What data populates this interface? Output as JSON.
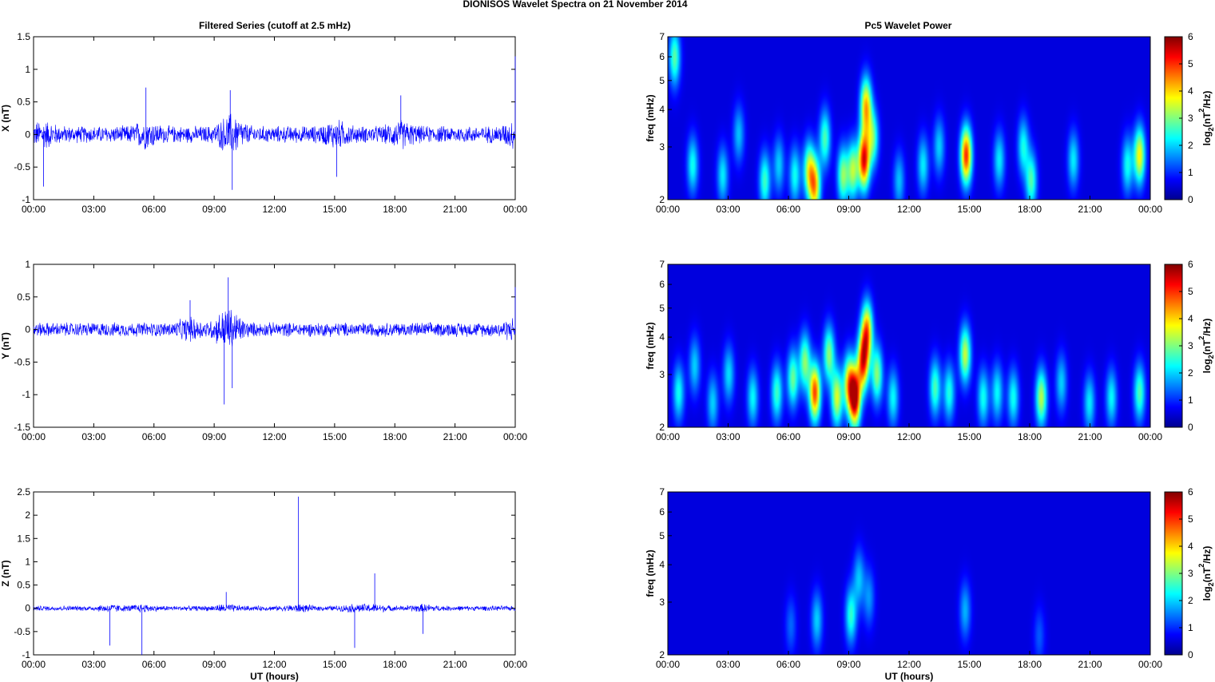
{
  "figure": {
    "title": "DIONISOS Wavelet Spectra on 21 November  2014",
    "left_title": "Filtered Series (cutoff at 2.5 mHz)",
    "right_title": "Pc5 Wavelet Power",
    "xlabel": "UT (hours)"
  },
  "colorbar": {
    "label_prefix": "log",
    "label_sub": "2",
    "label_mid": "(nT",
    "label_sup": "2",
    "label_suffix": "/Hz)",
    "ticks": [
      "0",
      "1",
      "2",
      "3",
      "4",
      "5",
      "6"
    ],
    "range": [
      0,
      6
    ],
    "colormap": "jet"
  },
  "chart_data": [
    {
      "type": "line",
      "panel": "time-series",
      "ylabel": "X (nT)",
      "x_ticks": [
        "00:00",
        "03:00",
        "06:00",
        "09:00",
        "12:00",
        "15:00",
        "18:00",
        "21:00",
        "00:00"
      ],
      "x_range": [
        "00:00",
        "24:00"
      ],
      "y_ticks": [
        "-1",
        "-0.5",
        "0",
        "0.5",
        "1",
        "1.5"
      ],
      "ylim": [
        -1,
        1.5
      ],
      "color": "#0000ff",
      "noise_amplitude": 0.12,
      "bursts": [
        {
          "time_h": 5.6,
          "value": 0.72
        },
        {
          "time_h": 9.8,
          "value": 0.68
        },
        {
          "time_h": 9.9,
          "value": -0.85
        },
        {
          "time_h": 0.5,
          "value": -0.8
        },
        {
          "time_h": 15.1,
          "value": -0.65
        },
        {
          "time_h": 18.3,
          "value": 0.6
        },
        {
          "time_h": 24.0,
          "value": 1.2
        }
      ]
    },
    {
      "type": "line",
      "panel": "time-series",
      "ylabel": "Y (nT)",
      "x_ticks": [
        "00:00",
        "03:00",
        "06:00",
        "09:00",
        "12:00",
        "15:00",
        "18:00",
        "21:00",
        "00:00"
      ],
      "x_range": [
        "00:00",
        "24:00"
      ],
      "y_ticks": [
        "-1.5",
        "-1",
        "-0.5",
        "0",
        "0.5",
        "1"
      ],
      "ylim": [
        -1.5,
        1
      ],
      "color": "#0000ff",
      "noise_amplitude": 0.1,
      "bursts": [
        {
          "time_h": 9.7,
          "value": 0.8
        },
        {
          "time_h": 9.5,
          "value": -1.15
        },
        {
          "time_h": 9.9,
          "value": -0.9
        },
        {
          "time_h": 7.8,
          "value": 0.45
        },
        {
          "time_h": 24.0,
          "value": 0.65
        }
      ]
    },
    {
      "type": "line",
      "panel": "time-series",
      "ylabel": "Z (nT)",
      "x_ticks": [
        "00:00",
        "03:00",
        "06:00",
        "09:00",
        "12:00",
        "15:00",
        "18:00",
        "21:00",
        "00:00"
      ],
      "x_range": [
        "00:00",
        "24:00"
      ],
      "y_ticks": [
        "-1",
        "-0.5",
        "0",
        "0.5",
        "1",
        "1.5",
        "2",
        "2.5"
      ],
      "ylim": [
        -1,
        2.5
      ],
      "color": "#0000ff",
      "noise_amplitude": 0.05,
      "bursts": [
        {
          "time_h": 13.2,
          "value": 2.4
        },
        {
          "time_h": 17.0,
          "value": 0.75
        },
        {
          "time_h": 3.8,
          "value": -0.8
        },
        {
          "time_h": 5.4,
          "value": -1.0
        },
        {
          "time_h": 16.0,
          "value": -0.85
        },
        {
          "time_h": 19.4,
          "value": -0.55
        },
        {
          "time_h": 9.6,
          "value": 0.35
        }
      ]
    },
    {
      "type": "heatmap",
      "panel": "wavelet-power",
      "ylabel": "freq (mHz)",
      "x_ticks": [
        "00:00",
        "03:00",
        "06:00",
        "09:00",
        "12:00",
        "15:00",
        "18:00",
        "21:00",
        "00:00"
      ],
      "x_range": [
        "00:00",
        "24:00"
      ],
      "y_ticks": [
        "2",
        "3",
        "4",
        "5",
        "6",
        "7"
      ],
      "ylim": [
        2,
        7
      ],
      "yscale": "log",
      "zlim": [
        0,
        6
      ],
      "blobs": [
        {
          "time_h": 0.3,
          "freq": 6.0,
          "power": 2.5
        },
        {
          "time_h": 1.2,
          "freq": 2.6,
          "power": 2.0
        },
        {
          "time_h": 2.7,
          "freq": 2.4,
          "power": 1.8
        },
        {
          "time_h": 3.5,
          "freq": 3.3,
          "power": 1.5
        },
        {
          "time_h": 4.8,
          "freq": 2.3,
          "power": 2.3
        },
        {
          "time_h": 5.5,
          "freq": 2.6,
          "power": 1.6
        },
        {
          "time_h": 6.3,
          "freq": 2.4,
          "power": 2.0
        },
        {
          "time_h": 7.0,
          "freq": 2.5,
          "power": 3.0
        },
        {
          "time_h": 7.3,
          "freq": 2.2,
          "power": 3.8
        },
        {
          "time_h": 7.8,
          "freq": 3.2,
          "power": 2.4
        },
        {
          "time_h": 8.7,
          "freq": 2.4,
          "power": 2.8
        },
        {
          "time_h": 9.2,
          "freq": 2.5,
          "power": 3.0
        },
        {
          "time_h": 9.75,
          "freq": 2.7,
          "power": 5.3
        },
        {
          "time_h": 9.85,
          "freq": 4.1,
          "power": 4.0
        },
        {
          "time_h": 10.2,
          "freq": 3.2,
          "power": 2.5
        },
        {
          "time_h": 11.5,
          "freq": 2.3,
          "power": 1.5
        },
        {
          "time_h": 12.7,
          "freq": 2.6,
          "power": 1.8
        },
        {
          "time_h": 13.5,
          "freq": 3.0,
          "power": 1.6
        },
        {
          "time_h": 14.85,
          "freq": 2.8,
          "power": 5.0
        },
        {
          "time_h": 16.5,
          "freq": 2.7,
          "power": 1.8
        },
        {
          "time_h": 17.7,
          "freq": 3.0,
          "power": 2.0
        },
        {
          "time_h": 18.1,
          "freq": 2.3,
          "power": 2.4
        },
        {
          "time_h": 20.2,
          "freq": 2.7,
          "power": 1.8
        },
        {
          "time_h": 22.9,
          "freq": 2.6,
          "power": 2.0
        },
        {
          "time_h": 23.5,
          "freq": 2.8,
          "power": 3.6
        }
      ]
    },
    {
      "type": "heatmap",
      "panel": "wavelet-power",
      "ylabel": "freq (mHz)",
      "x_ticks": [
        "00:00",
        "03:00",
        "06:00",
        "09:00",
        "12:00",
        "15:00",
        "18:00",
        "21:00",
        "00:00"
      ],
      "x_range": [
        "00:00",
        "24:00"
      ],
      "y_ticks": [
        "2",
        "3",
        "4",
        "5",
        "6",
        "7"
      ],
      "ylim": [
        2,
        7
      ],
      "yscale": "log",
      "zlim": [
        0,
        6
      ],
      "blobs": [
        {
          "time_h": 0.5,
          "freq": 2.6,
          "power": 2.0
        },
        {
          "time_h": 1.3,
          "freq": 3.2,
          "power": 1.6
        },
        {
          "time_h": 2.2,
          "freq": 2.4,
          "power": 1.6
        },
        {
          "time_h": 3.0,
          "freq": 3.0,
          "power": 1.7
        },
        {
          "time_h": 4.2,
          "freq": 2.5,
          "power": 1.9
        },
        {
          "time_h": 5.4,
          "freq": 2.6,
          "power": 2.3
        },
        {
          "time_h": 6.2,
          "freq": 2.9,
          "power": 2.6
        },
        {
          "time_h": 6.8,
          "freq": 3.3,
          "power": 2.8
        },
        {
          "time_h": 7.3,
          "freq": 2.6,
          "power": 4.8
        },
        {
          "time_h": 8.0,
          "freq": 3.5,
          "power": 2.8
        },
        {
          "time_h": 8.4,
          "freq": 2.5,
          "power": 3.3
        },
        {
          "time_h": 9.0,
          "freq": 2.8,
          "power": 3.6
        },
        {
          "time_h": 9.3,
          "freq": 2.5,
          "power": 5.8
        },
        {
          "time_h": 9.7,
          "freq": 3.3,
          "power": 4.8
        },
        {
          "time_h": 9.9,
          "freq": 4.2,
          "power": 4.2
        },
        {
          "time_h": 10.4,
          "freq": 3.0,
          "power": 2.8
        },
        {
          "time_h": 11.2,
          "freq": 2.5,
          "power": 1.9
        },
        {
          "time_h": 13.3,
          "freq": 2.7,
          "power": 2.4
        },
        {
          "time_h": 14.0,
          "freq": 2.6,
          "power": 2.1
        },
        {
          "time_h": 14.8,
          "freq": 3.5,
          "power": 3.2
        },
        {
          "time_h": 15.7,
          "freq": 2.5,
          "power": 2.0
        },
        {
          "time_h": 16.4,
          "freq": 2.6,
          "power": 1.9
        },
        {
          "time_h": 17.2,
          "freq": 2.5,
          "power": 2.0
        },
        {
          "time_h": 18.6,
          "freq": 2.5,
          "power": 3.1
        },
        {
          "time_h": 19.6,
          "freq": 2.8,
          "power": 1.6
        },
        {
          "time_h": 21.0,
          "freq": 2.4,
          "power": 1.8
        },
        {
          "time_h": 22.1,
          "freq": 2.5,
          "power": 1.9
        },
        {
          "time_h": 23.5,
          "freq": 2.6,
          "power": 2.4
        }
      ]
    },
    {
      "type": "heatmap",
      "panel": "wavelet-power",
      "ylabel": "freq (mHz)",
      "x_ticks": [
        "00:00",
        "03:00",
        "06:00",
        "09:00",
        "12:00",
        "15:00",
        "18:00",
        "21:00",
        "00:00"
      ],
      "x_range": [
        "00:00",
        "24:00"
      ],
      "y_ticks": [
        "2",
        "3",
        "4",
        "5",
        "6",
        "7"
      ],
      "ylim": [
        2,
        7
      ],
      "yscale": "log",
      "zlim": [
        0,
        6
      ],
      "blobs": [
        {
          "time_h": 6.1,
          "freq": 2.5,
          "power": 0.9
        },
        {
          "time_h": 7.4,
          "freq": 2.6,
          "power": 1.6
        },
        {
          "time_h": 9.1,
          "freq": 2.7,
          "power": 2.2
        },
        {
          "time_h": 9.5,
          "freq": 3.6,
          "power": 1.5
        },
        {
          "time_h": 10.0,
          "freq": 3.1,
          "power": 1.2
        },
        {
          "time_h": 14.8,
          "freq": 2.8,
          "power": 1.4
        },
        {
          "time_h": 18.5,
          "freq": 2.3,
          "power": 0.8
        }
      ]
    }
  ]
}
